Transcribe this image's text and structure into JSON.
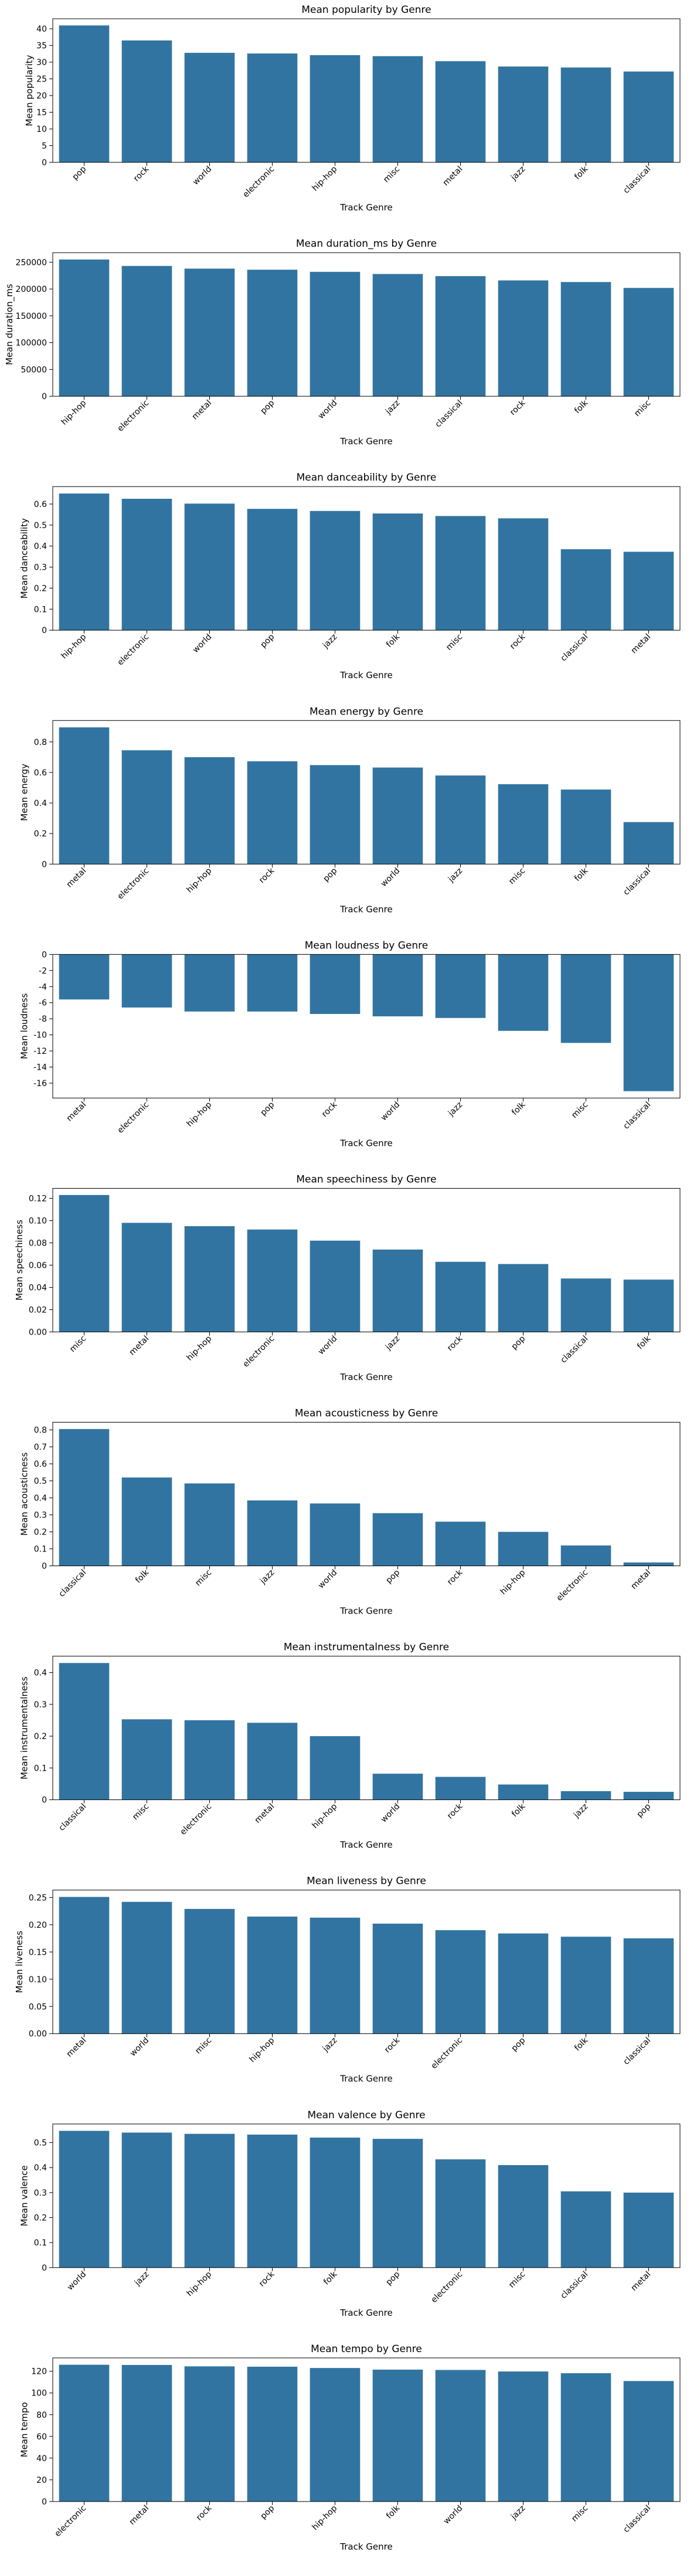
{
  "chart_data": [
    {
      "type": "bar",
      "title": "Mean popularity by Genre",
      "xlabel": "Track Genre",
      "ylabel": "Mean popularity",
      "categories": [
        "pop",
        "rock",
        "world",
        "electronic",
        "hip-hop",
        "misc",
        "metal",
        "jazz",
        "folk",
        "classical"
      ],
      "values": [
        41.0,
        36.5,
        32.8,
        32.6,
        32.1,
        31.8,
        30.3,
        28.7,
        28.4,
        27.2
      ],
      "ylim": [
        0,
        43
      ],
      "yticks": [
        0,
        5,
        10,
        15,
        20,
        25,
        30,
        35,
        40
      ],
      "grid": false,
      "bar_color": "#3274a1"
    },
    {
      "type": "bar",
      "title": "Mean duration_ms by Genre",
      "xlabel": "Track Genre",
      "ylabel": "Mean duration_ms",
      "categories": [
        "hip-hop",
        "electronic",
        "metal",
        "pop",
        "world",
        "jazz",
        "classical",
        "rock",
        "folk",
        "misc"
      ],
      "values": [
        255000,
        243000,
        238000,
        236000,
        232000,
        228000,
        224000,
        216000,
        213000,
        202000
      ],
      "ylim": [
        0,
        267750
      ],
      "yticks": [
        0,
        50000,
        100000,
        150000,
        200000,
        250000
      ],
      "grid": false,
      "bar_color": "#3274a1"
    },
    {
      "type": "bar",
      "title": "Mean danceability by Genre",
      "xlabel": "Track Genre",
      "ylabel": "Mean danceability",
      "categories": [
        "hip-hop",
        "electronic",
        "world",
        "pop",
        "jazz",
        "folk",
        "misc",
        "rock",
        "classical",
        "metal"
      ],
      "values": [
        0.65,
        0.625,
        0.602,
        0.577,
        0.567,
        0.555,
        0.543,
        0.532,
        0.385,
        0.373
      ],
      "ylim": [
        0,
        0.683
      ],
      "yticks": [
        0.0,
        0.1,
        0.2,
        0.3,
        0.4,
        0.5,
        0.6
      ],
      "grid": false,
      "bar_color": "#3274a1"
    },
    {
      "type": "bar",
      "title": "Mean energy by Genre",
      "xlabel": "Track Genre",
      "ylabel": "Mean energy",
      "categories": [
        "metal",
        "electronic",
        "hip-hop",
        "rock",
        "pop",
        "world",
        "jazz",
        "misc",
        "folk",
        "classical"
      ],
      "values": [
        0.895,
        0.745,
        0.7,
        0.673,
        0.648,
        0.632,
        0.58,
        0.523,
        0.488,
        0.275
      ],
      "ylim": [
        0,
        0.94
      ],
      "yticks": [
        0.0,
        0.2,
        0.4,
        0.6,
        0.8
      ],
      "grid": false,
      "bar_color": "#3274a1"
    },
    {
      "type": "bar",
      "title": "Mean loudness by Genre",
      "xlabel": "Track Genre",
      "ylabel": "Mean loudness",
      "categories": [
        "metal",
        "electronic",
        "hip-hop",
        "pop",
        "rock",
        "world",
        "jazz",
        "folk",
        "misc",
        "classical"
      ],
      "values": [
        -5.6,
        -6.6,
        -7.1,
        -7.1,
        -7.4,
        -7.7,
        -7.9,
        -9.5,
        -11.0,
        -17.0
      ],
      "ylim": [
        -17.85,
        0
      ],
      "yticks": [
        0,
        -2,
        -4,
        -6,
        -8,
        -10,
        -12,
        -14,
        -16
      ],
      "grid": false,
      "bar_color": "#3274a1"
    },
    {
      "type": "bar",
      "title": "Mean speechiness by Genre",
      "xlabel": "Track Genre",
      "ylabel": "Mean speechiness",
      "categories": [
        "misc",
        "metal",
        "hip-hop",
        "electronic",
        "world",
        "jazz",
        "rock",
        "pop",
        "classical",
        "folk"
      ],
      "values": [
        0.123,
        0.098,
        0.095,
        0.092,
        0.082,
        0.074,
        0.063,
        0.061,
        0.048,
        0.047
      ],
      "ylim": [
        0,
        0.129
      ],
      "yticks": [
        0.0,
        0.02,
        0.04,
        0.06,
        0.08,
        0.1,
        0.12
      ],
      "ytick_decimals": 2,
      "grid": false,
      "bar_color": "#3274a1"
    },
    {
      "type": "bar",
      "title": "Mean acousticness by Genre",
      "xlabel": "Track Genre",
      "ylabel": "Mean acousticness",
      "categories": [
        "classical",
        "folk",
        "misc",
        "jazz",
        "world",
        "pop",
        "rock",
        "hip-hop",
        "electronic",
        "metal"
      ],
      "values": [
        0.805,
        0.52,
        0.485,
        0.385,
        0.367,
        0.31,
        0.26,
        0.2,
        0.12,
        0.02
      ],
      "ylim": [
        0,
        0.845
      ],
      "yticks": [
        0.0,
        0.1,
        0.2,
        0.3,
        0.4,
        0.5,
        0.6,
        0.7,
        0.8
      ],
      "grid": false,
      "bar_color": "#3274a1"
    },
    {
      "type": "bar",
      "title": "Mean instrumentalness by Genre",
      "xlabel": "Track Genre",
      "ylabel": "Mean instrumentalness",
      "categories": [
        "classical",
        "misc",
        "electronic",
        "metal",
        "hip-hop",
        "world",
        "rock",
        "folk",
        "jazz",
        "pop"
      ],
      "values": [
        0.43,
        0.253,
        0.25,
        0.242,
        0.2,
        0.082,
        0.072,
        0.048,
        0.027,
        0.025
      ],
      "ylim": [
        0,
        0.4515
      ],
      "yticks": [
        0.0,
        0.1,
        0.2,
        0.3,
        0.4
      ],
      "grid": false,
      "bar_color": "#3274a1"
    },
    {
      "type": "bar",
      "title": "Mean liveness by Genre",
      "xlabel": "Track Genre",
      "ylabel": "Mean liveness",
      "categories": [
        "metal",
        "world",
        "misc",
        "hip-hop",
        "jazz",
        "rock",
        "electronic",
        "pop",
        "folk",
        "classical"
      ],
      "values": [
        0.251,
        0.242,
        0.229,
        0.215,
        0.213,
        0.202,
        0.19,
        0.184,
        0.178,
        0.175
      ],
      "ylim": [
        0,
        0.2636
      ],
      "yticks": [
        0.0,
        0.05,
        0.1,
        0.15,
        0.2,
        0.25
      ],
      "ytick_decimals": 2,
      "grid": false,
      "bar_color": "#3274a1"
    },
    {
      "type": "bar",
      "title": "Mean valence by Genre",
      "xlabel": "Track Genre",
      "ylabel": "Mean valence",
      "categories": [
        "world",
        "jazz",
        "hip-hop",
        "rock",
        "folk",
        "pop",
        "electronic",
        "misc",
        "classical",
        "metal"
      ],
      "values": [
        0.547,
        0.54,
        0.535,
        0.532,
        0.52,
        0.515,
        0.433,
        0.41,
        0.305,
        0.3
      ],
      "ylim": [
        0,
        0.5744
      ],
      "yticks": [
        0.0,
        0.1,
        0.2,
        0.3,
        0.4,
        0.5
      ],
      "grid": false,
      "bar_color": "#3274a1"
    },
    {
      "type": "bar",
      "title": "Mean tempo by Genre",
      "xlabel": "Track Genre",
      "ylabel": "Mean tempo",
      "categories": [
        "electronic",
        "metal",
        "rock",
        "pop",
        "hip-hop",
        "folk",
        "world",
        "jazz",
        "misc",
        "classical"
      ],
      "values": [
        126.0,
        125.8,
        124.5,
        124.2,
        123.0,
        121.5,
        121.2,
        119.8,
        118.2,
        111.0
      ],
      "ylim": [
        0,
        132.3
      ],
      "yticks": [
        0,
        20,
        40,
        60,
        80,
        100,
        120
      ],
      "grid": false,
      "bar_color": "#3274a1"
    }
  ]
}
